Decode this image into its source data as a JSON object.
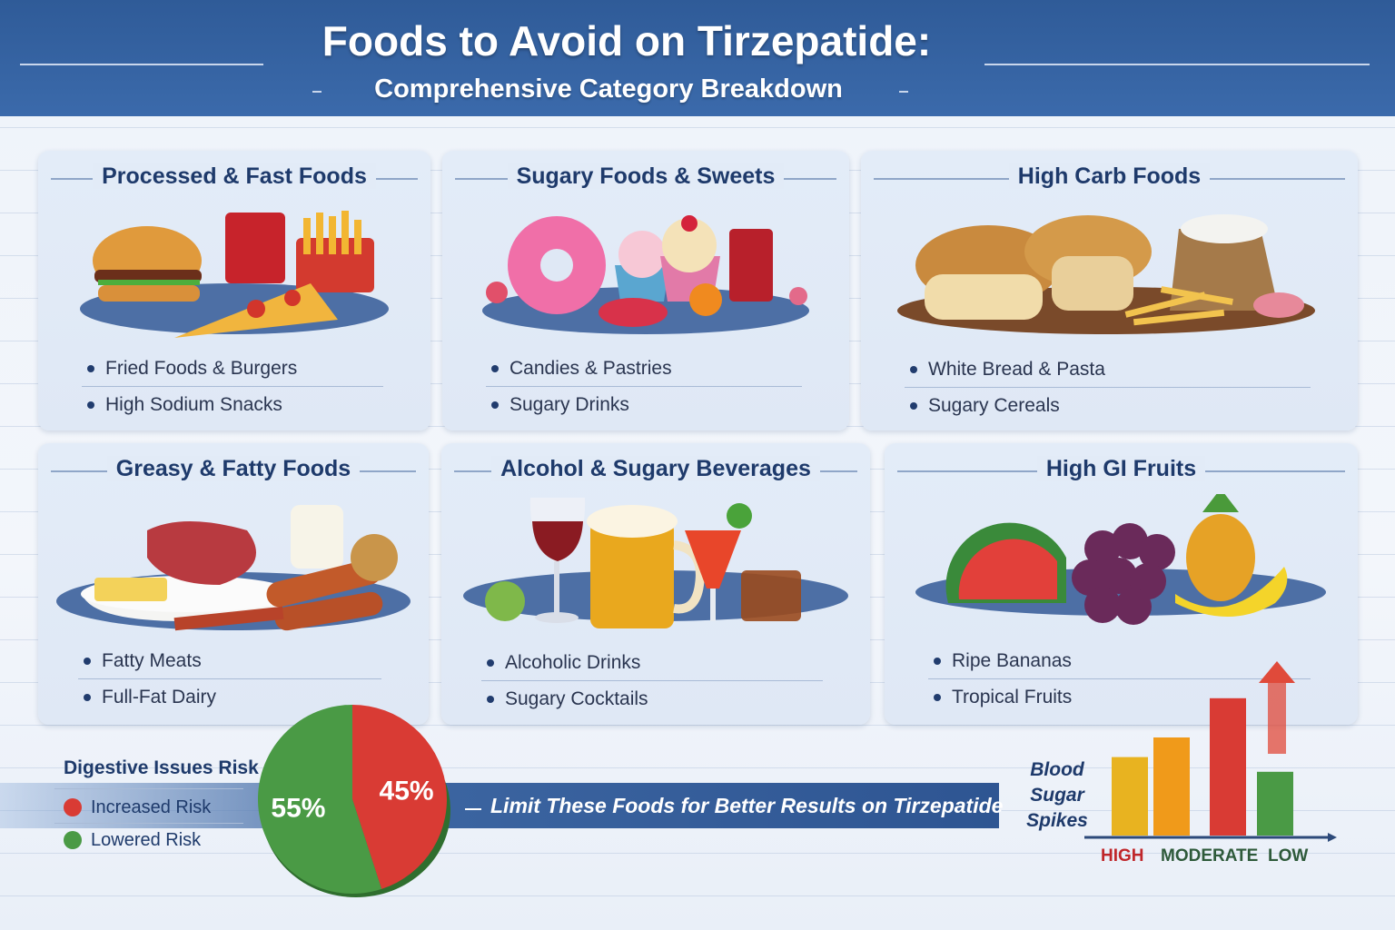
{
  "header": {
    "title": "Foods to Avoid on Tirzepatide:",
    "subtitle": "Comprehensive Category Breakdown"
  },
  "cards": [
    {
      "title": "Processed & Fast Foods",
      "items": [
        "Fried Foods & Burgers",
        "High Sodium Snacks"
      ]
    },
    {
      "title": "Sugary Foods & Sweets",
      "items": [
        "Candies & Pastries",
        "Sugary Drinks"
      ]
    },
    {
      "title": "High Carb Foods",
      "items": [
        "White Bread & Pasta",
        "Sugary Cereals"
      ]
    },
    {
      "title": "Greasy & Fatty Foods",
      "items": [
        "Fatty Meats",
        "Full-Fat Dairy"
      ]
    },
    {
      "title": "Alcohol & Sugary Beverages",
      "items": [
        "Alcoholic Drinks",
        "Sugary Cocktails"
      ]
    },
    {
      "title": "High GI Fruits",
      "items": [
        "Ripe Bananas",
        "Tropical Fruits"
      ]
    }
  ],
  "risk_legend": {
    "title": "Digestive Issues Risk",
    "items": [
      {
        "label": "Increased Risk",
        "color": "#d93b34"
      },
      {
        "label": "Lowered Risk",
        "color": "#4a9a45"
      }
    ]
  },
  "chart_data": [
    {
      "type": "pie",
      "slices": [
        {
          "label": "45%",
          "value": 45,
          "color": "#d93b34"
        },
        {
          "label": "55%",
          "value": 55,
          "color": "#4a9a45"
        }
      ]
    },
    {
      "type": "bar",
      "title": "Blood Sugar Spikes",
      "category_labels": [
        "HIGH",
        "MODERATE",
        "LOW"
      ],
      "category_colors": [
        "#c0262a",
        "#2e5a3a",
        "#2e5a3a"
      ],
      "bars": [
        {
          "value": 3.2,
          "color": "#e8b320"
        },
        {
          "value": 4.0,
          "color": "#f09a1a"
        },
        {
          "value": 5.6,
          "color": "#d93b34"
        },
        {
          "value": 2.6,
          "color": "#4a9a45"
        }
      ]
    }
  ],
  "banner": {
    "text": "Limit These Foods for Better Results on Tirzepatide"
  }
}
